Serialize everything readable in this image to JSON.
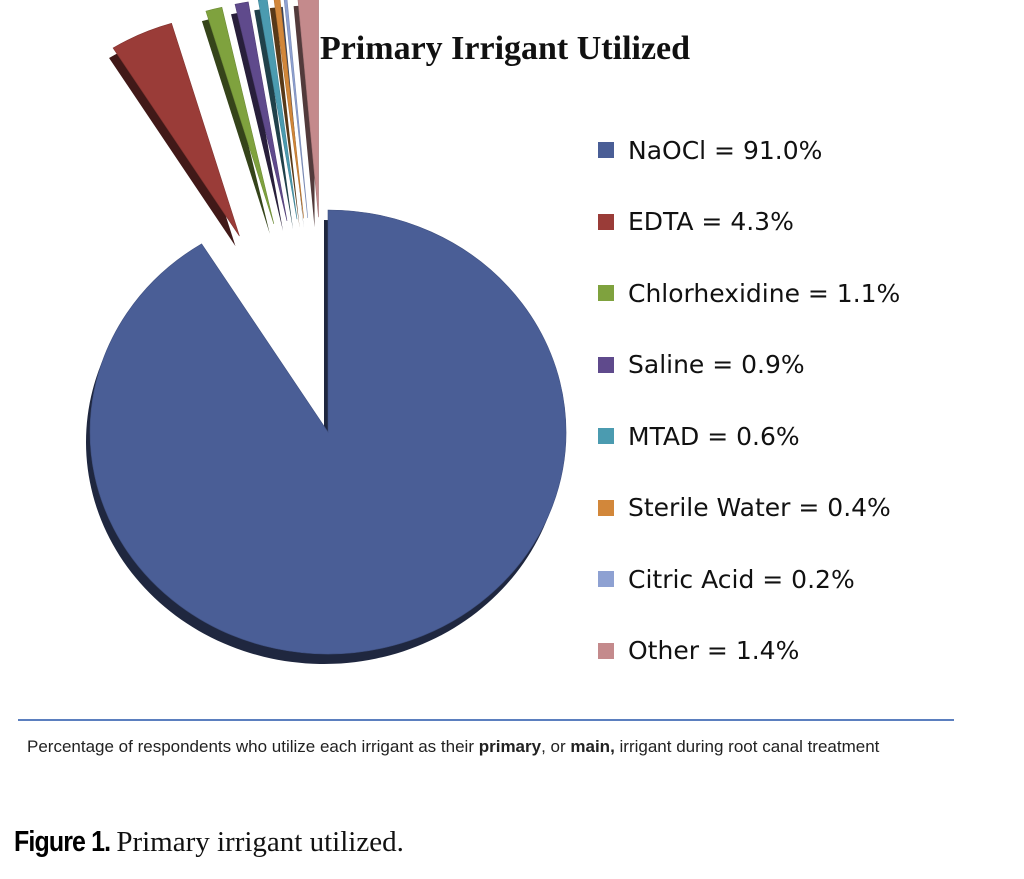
{
  "chart_data": {
    "type": "pie",
    "title": "Primary Irrigant Utilized",
    "slices": [
      {
        "name": "NaOCl",
        "value": 91.0,
        "label": "NaOCl = 91.0%",
        "color": "#4a5e96"
      },
      {
        "name": "EDTA",
        "value": 4.3,
        "label": "EDTA = 4.3%",
        "color": "#9a3c38"
      },
      {
        "name": "Chlorhexidine",
        "value": 1.1,
        "label": "Chlorhexidine = 1.1%",
        "color": "#7fa23e"
      },
      {
        "name": "Saline",
        "value": 0.9,
        "label": "Saline = 0.9%",
        "color": "#5f4a8c"
      },
      {
        "name": "MTAD",
        "value": 0.6,
        "label": "MTAD = 0.6%",
        "color": "#4b9bb0"
      },
      {
        "name": "Sterile Water",
        "value": 0.4,
        "label": "Sterile Water = 0.4%",
        "color": "#d2873a"
      },
      {
        "name": "Citric Acid",
        "value": 0.2,
        "label": "Citric Acid = 0.2%",
        "color": "#8ea1d2"
      },
      {
        "name": "Other",
        "value": 1.4,
        "label": "Other = 1.4%",
        "color": "#c48a8c"
      }
    ],
    "legend_position": "right",
    "exploded_slices": [
      "EDTA",
      "Chlorhexidine",
      "Saline",
      "MTAD",
      "Sterile Water",
      "Citric Acid",
      "Other"
    ],
    "style": "3d"
  },
  "footnote": {
    "text_before_primary": "Percentage of respondents who utilize each irrigant as their ",
    "primary": "primary",
    "text_between": ", or ",
    "main": "main,",
    "text_after_main": " irrigant during root canal treatment"
  },
  "caption": {
    "label": "Figure 1.",
    "text": "Primary irrigant utilized."
  }
}
